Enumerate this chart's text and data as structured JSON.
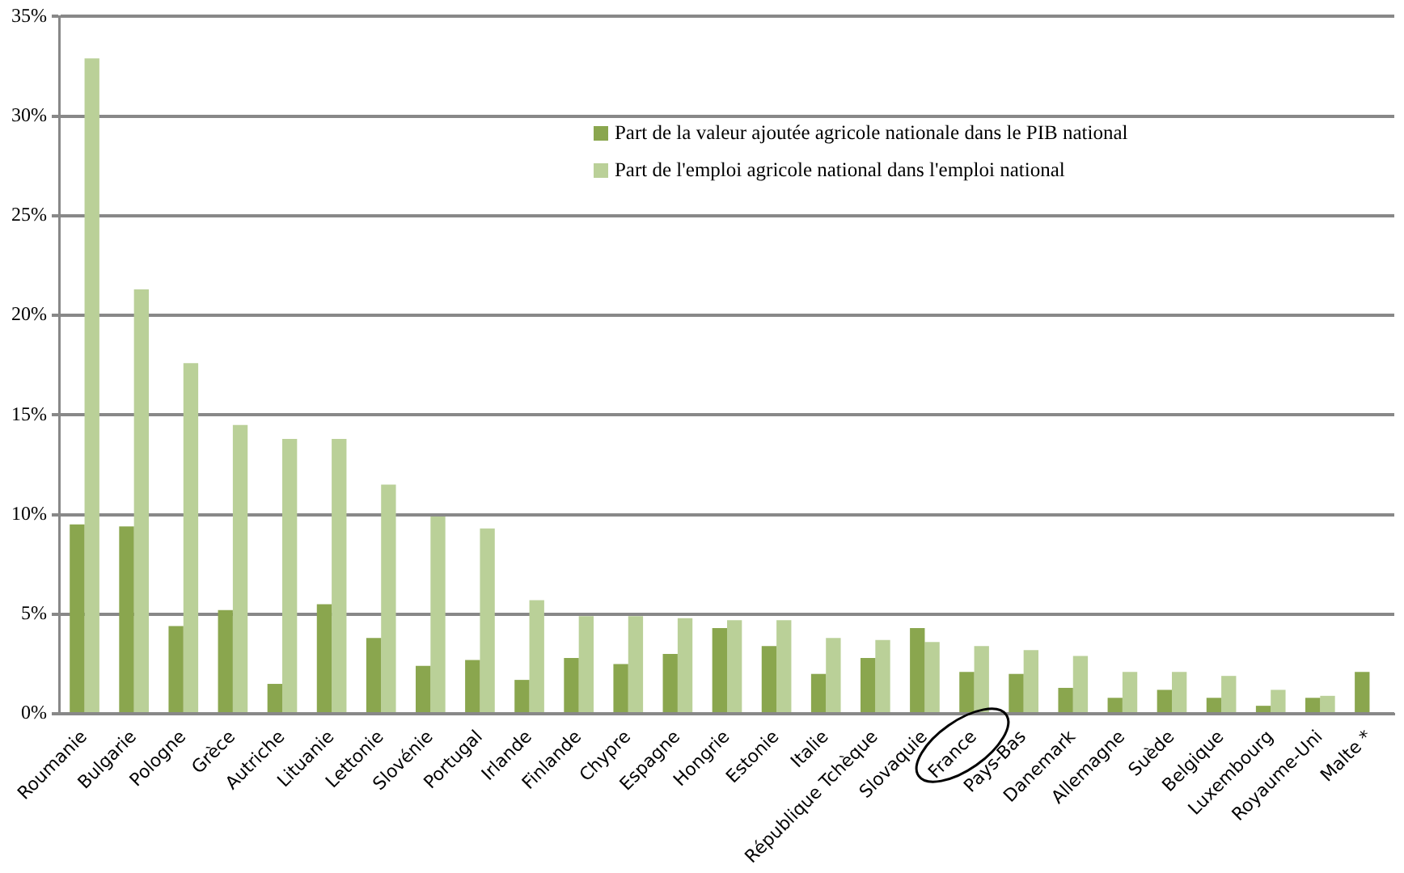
{
  "chart_data": {
    "type": "bar",
    "categories": [
      "Roumanie",
      "Bulgarie",
      "Pologne",
      "Grèce",
      "Autriche",
      "Lituanie",
      "Lettonie",
      "Slovénie",
      "Portugal",
      "Irlande",
      "Finlande",
      "Chypre",
      "Espagne",
      "Hongrie",
      "Estonie",
      "Italie",
      "République Tchèque",
      "Slovaquie",
      "France",
      "Pays-Bas",
      "Danemark",
      "Allemagne",
      "Suède",
      "Belgique",
      "Luxembourg",
      "Royaume-Uni",
      "Malte *"
    ],
    "series": [
      {
        "name": "Part de la valeur ajoutée agricole nationale dans le PIB national",
        "color": "#8aa64e",
        "values": [
          9.5,
          9.4,
          4.4,
          5.2,
          1.5,
          5.5,
          3.8,
          2.4,
          2.7,
          1.7,
          2.8,
          2.5,
          3.0,
          4.3,
          3.4,
          2.0,
          2.8,
          4.3,
          2.1,
          2.0,
          1.3,
          0.8,
          1.2,
          0.8,
          0.4,
          0.8,
          2.1
        ]
      },
      {
        "name": "Part de l'emploi agricole national dans l'emploi national",
        "color": "#bad098",
        "values": [
          32.9,
          21.3,
          17.6,
          14.5,
          13.8,
          13.8,
          11.5,
          9.9,
          9.3,
          5.7,
          4.9,
          4.9,
          4.8,
          4.7,
          4.7,
          3.8,
          3.7,
          3.6,
          3.4,
          3.2,
          2.9,
          2.1,
          2.1,
          1.9,
          1.2,
          0.9,
          null
        ]
      }
    ],
    "ylim": [
      0,
      35
    ],
    "yticks": [
      {
        "value": 0,
        "label": "0%"
      },
      {
        "value": 5,
        "label": "5%"
      },
      {
        "value": 10,
        "label": "10%"
      },
      {
        "value": 15,
        "label": "15%"
      },
      {
        "value": 20,
        "label": "20%"
      },
      {
        "value": 25,
        "label": "25%"
      },
      {
        "value": 30,
        "label": "30%"
      },
      {
        "value": 35,
        "label": "35%"
      }
    ],
    "grid": "y",
    "legend": "top right"
  }
}
